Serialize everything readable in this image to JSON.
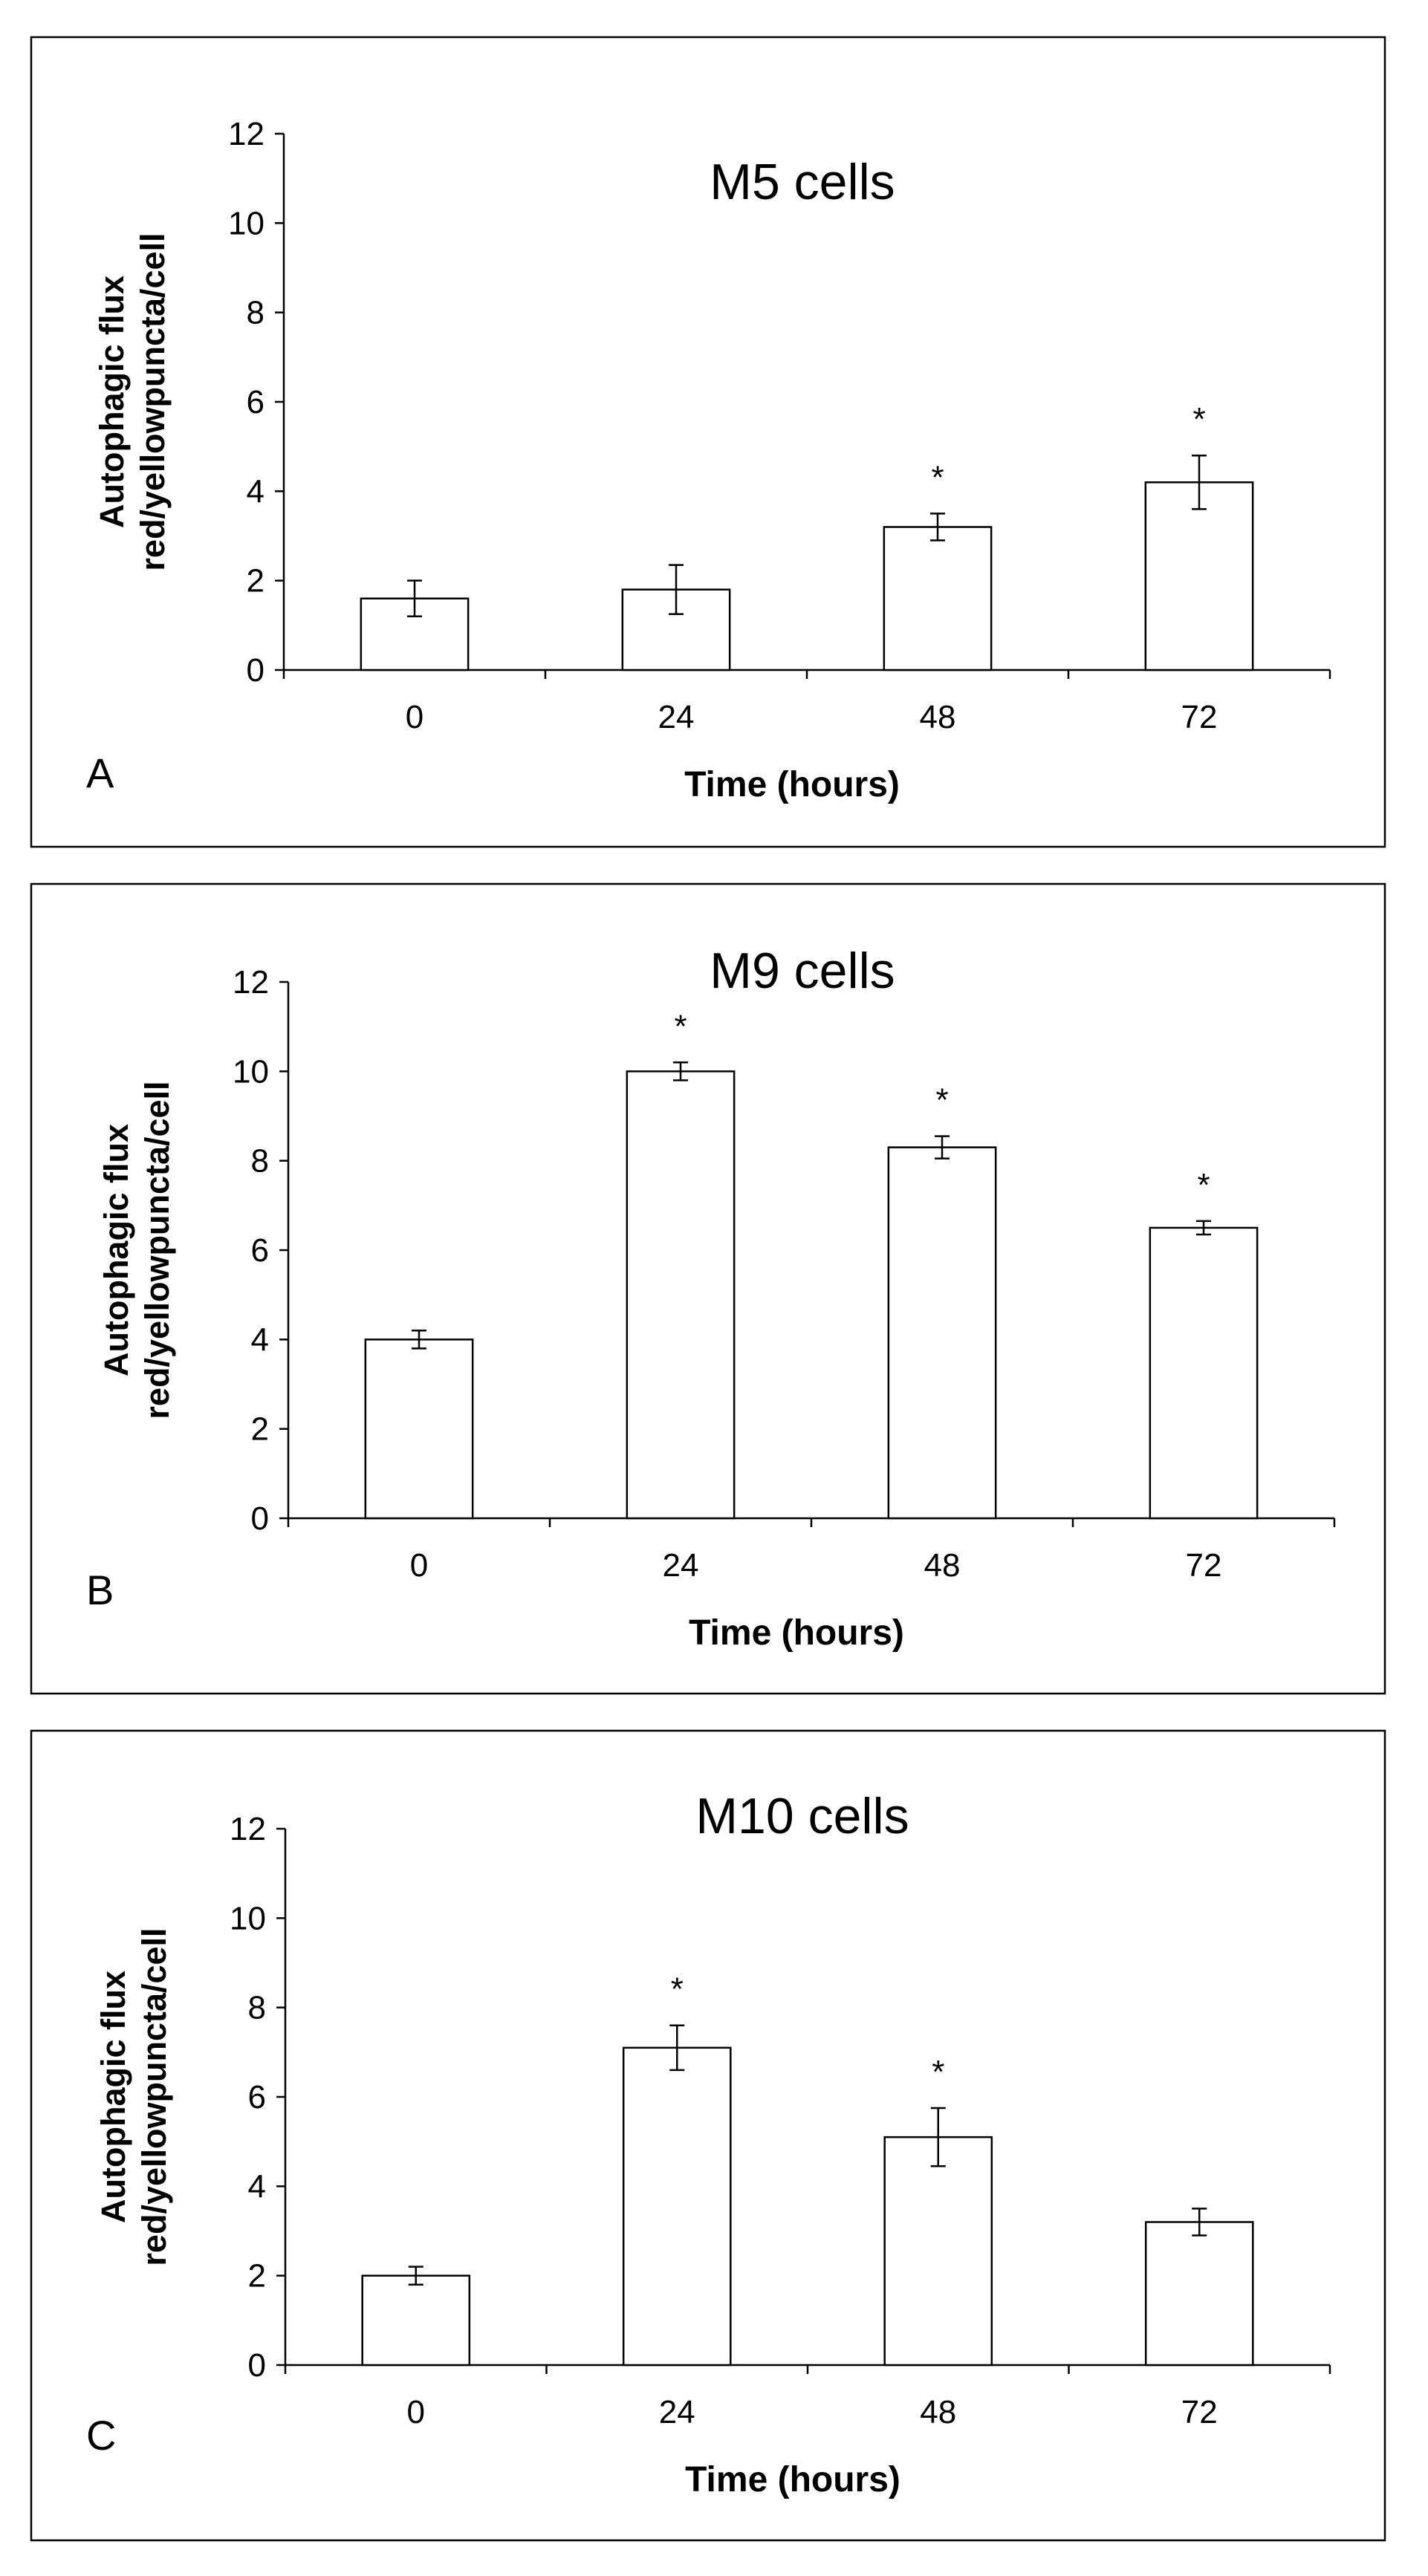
{
  "chart_data": [
    {
      "type": "bar",
      "panel": "A",
      "title": "M5 cells",
      "xlabel": "Time (hours)",
      "ylabel_lines": [
        "Autophagic flux",
        "red/yellowpuncta/cell"
      ],
      "categories": [
        "0",
        "24",
        "48",
        "72"
      ],
      "values": [
        1.6,
        1.8,
        3.2,
        4.2
      ],
      "errors": [
        0.4,
        0.55,
        0.3,
        0.6
      ],
      "significance": [
        "",
        "",
        "*",
        "*"
      ],
      "ylim": [
        0,
        12
      ],
      "yticks": [
        "0",
        "2",
        "4",
        "6",
        "8",
        "10",
        "12"
      ]
    },
    {
      "type": "bar",
      "panel": "B",
      "title": "M9 cells",
      "xlabel": "Time (hours)",
      "ylabel_lines": [
        "Autophagic flux",
        "red/yellowpuncta/cell"
      ],
      "categories": [
        "0",
        "24",
        "48",
        "72"
      ],
      "values": [
        4.0,
        10.0,
        8.3,
        6.5
      ],
      "errors": [
        0.2,
        0.2,
        0.25,
        0.15
      ],
      "significance": [
        "",
        "*",
        "*",
        "*"
      ],
      "ylim": [
        0,
        12
      ],
      "yticks": [
        "0",
        "2",
        "4",
        "6",
        "8",
        "10",
        "12"
      ]
    },
    {
      "type": "bar",
      "panel": "C",
      "title": "M10 cells",
      "xlabel": "Time (hours)",
      "ylabel_lines": [
        "Autophagic flux",
        "red/yellowpuncta/cell"
      ],
      "categories": [
        "0",
        "24",
        "48",
        "72"
      ],
      "values": [
        2.0,
        7.1,
        5.1,
        3.2
      ],
      "errors": [
        0.2,
        0.5,
        0.65,
        0.3
      ],
      "significance": [
        "",
        "*",
        "*",
        ""
      ],
      "ylim": [
        0,
        12
      ],
      "yticks": [
        "0",
        "2",
        "4",
        "6",
        "8",
        "10",
        "12"
      ]
    }
  ]
}
